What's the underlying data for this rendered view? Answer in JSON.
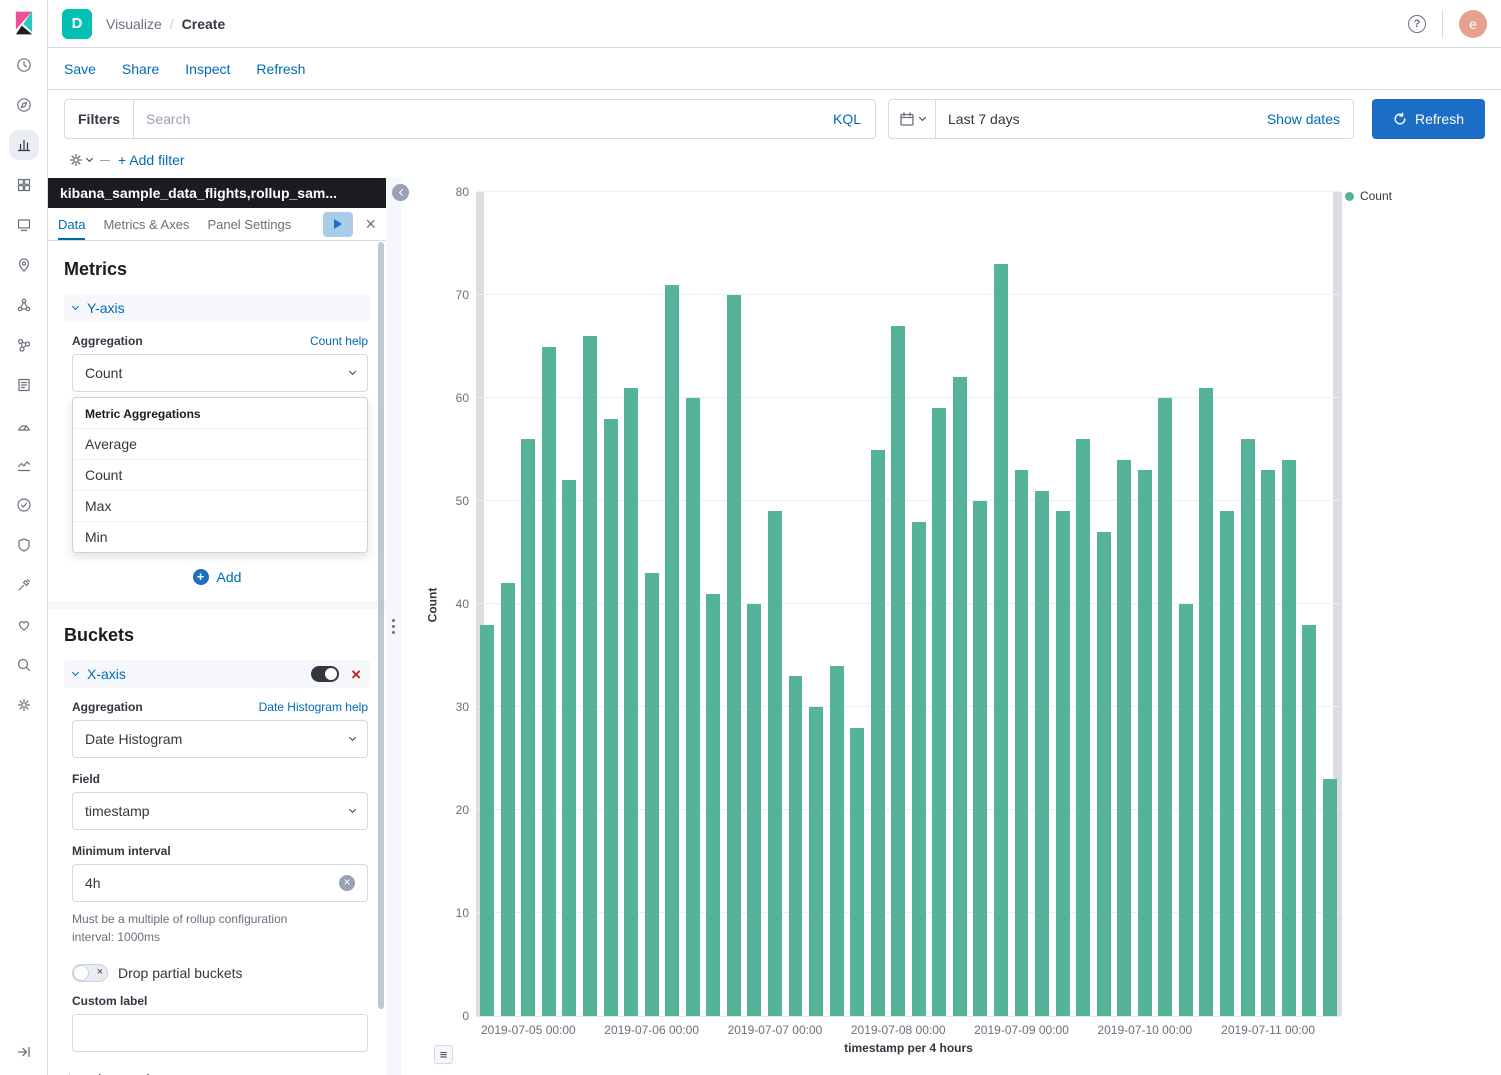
{
  "header": {
    "space_initial": "D",
    "breadcrumb": {
      "section": "Visualize",
      "separator": "/",
      "page": "Create"
    },
    "avatar_initial": "e"
  },
  "menu": {
    "items": [
      "Save",
      "Share",
      "Inspect",
      "Refresh"
    ]
  },
  "search_bar": {
    "filters_label": "Filters",
    "placeholder": "Search",
    "kql_label": "KQL",
    "date_range": "Last 7 days",
    "show_dates_label": "Show dates",
    "refresh_label": "Refresh"
  },
  "filter_row": {
    "add_filter_label": "+ Add filter"
  },
  "sidebar": {
    "active_icon": "visualize",
    "icons": [
      "recently-viewed",
      "discover",
      "visualize",
      "dashboard",
      "canvas",
      "maps",
      "machine-learning",
      "graph",
      "logs",
      "metrics",
      "apm",
      "uptime",
      "siem",
      "dev-tools",
      "monitoring",
      "app-search",
      "management"
    ]
  },
  "editor": {
    "index_title": "kibana_sample_data_flights,rollup_sam...",
    "tabs": [
      "Data",
      "Metrics & Axes",
      "Panel Settings"
    ],
    "active_tab": "Data",
    "metrics": {
      "heading": "Metrics",
      "axis_label": "Y-axis",
      "aggregation_label": "Aggregation",
      "help_link": "Count help",
      "value": "Count",
      "add_label": "Add"
    },
    "dropdown": {
      "group_label": "Metric Aggregations",
      "options": [
        "Average",
        "Count",
        "Max",
        "Min"
      ]
    },
    "buckets": {
      "heading": "Buckets",
      "axis_label": "X-axis",
      "aggregation_label": "Aggregation",
      "help_link": "Date Histogram help",
      "aggregation_value": "Date Histogram",
      "field_label": "Field",
      "field_value": "timestamp",
      "min_interval_label": "Minimum interval",
      "min_interval_value": "4h",
      "helper_text": "Must be a multiple of rollup configuration interval: 1000ms",
      "drop_partial_label": "Drop partial buckets",
      "custom_label": "Custom label",
      "advanced_label": "Advanced"
    }
  },
  "chart_data": {
    "type": "bar",
    "title": "",
    "xlabel": "timestamp per 4 hours",
    "ylabel": "Count",
    "legend": [
      "Count"
    ],
    "legend_position": "top-right",
    "grid": true,
    "bar_color": "#54B399",
    "ylim": [
      0,
      80
    ],
    "yticks": [
      0,
      10,
      20,
      30,
      40,
      50,
      60,
      70,
      80
    ],
    "values": [
      38,
      42,
      56,
      65,
      52,
      66,
      58,
      61,
      43,
      71,
      60,
      41,
      70,
      40,
      49,
      33,
      30,
      34,
      28,
      55,
      67,
      48,
      59,
      62,
      50,
      73,
      53,
      51,
      49,
      56,
      47,
      54,
      53,
      60,
      40,
      61,
      49,
      56,
      53,
      54,
      38,
      23
    ],
    "x_tick_labels": [
      "2019-07-05 00:00",
      "2019-07-06 00:00",
      "2019-07-07 00:00",
      "2019-07-08 00:00",
      "2019-07-09 00:00",
      "2019-07-10 00:00",
      "2019-07-11 00:00"
    ],
    "x_tick_bar_centers": [
      2.5,
      8.5,
      14.5,
      20.5,
      26.5,
      32.5,
      38.5
    ]
  },
  "colors": {
    "accent_blue": "#006BB4",
    "primary_button": "#1B6DC6",
    "bar_teal": "#54B399",
    "space_badge": "#00BFB3",
    "avatar": "#E7A28F",
    "panel_header": "#1A1C21",
    "danger_red": "#BD271E"
  }
}
